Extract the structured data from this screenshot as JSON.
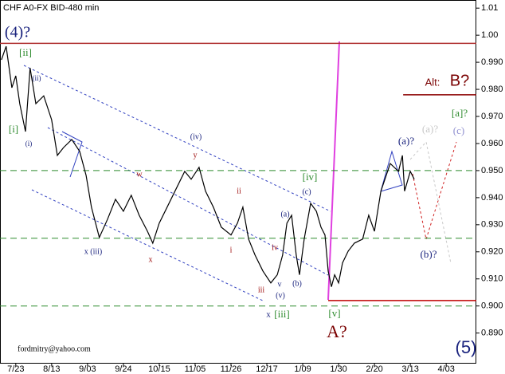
{
  "chart_data": {
    "type": "line",
    "title": "CHF A0-FX BID-480 min",
    "xlim": [
      -0.44,
      12.84
    ],
    "xticks": [
      {
        "value": 0,
        "label": "7/23"
      },
      {
        "value": 1,
        "label": "8/13"
      },
      {
        "value": 2,
        "label": "9/03"
      },
      {
        "value": 3,
        "label": "9/24"
      },
      {
        "value": 4,
        "label": "10/15"
      },
      {
        "value": 5,
        "label": "11/05"
      },
      {
        "value": 6,
        "label": "11/26"
      },
      {
        "value": 7,
        "label": "12/17"
      },
      {
        "value": 8,
        "label": "1/09"
      },
      {
        "value": 9,
        "label": "1/30"
      },
      {
        "value": 10,
        "label": "2/20"
      },
      {
        "value": 11,
        "label": "3/13"
      },
      {
        "value": 12,
        "label": "4/03"
      }
    ],
    "ylim": [
      0.879,
      1.013
    ],
    "yticks": [
      1.01,
      {
        "value": 1.0,
        "label": "1.00"
      },
      {
        "value": 0.99,
        "label": "0.990"
      },
      {
        "value": 0.98,
        "label": "0.980"
      },
      {
        "value": 0.97,
        "label": "0.970"
      },
      {
        "value": 0.96,
        "label": "0.960"
      },
      {
        "value": 0.95,
        "label": "0.950"
      },
      {
        "value": 0.94,
        "label": "0.940"
      },
      {
        "value": 0.93,
        "label": "0.930"
      },
      {
        "value": 0.92,
        "label": "0.920"
      },
      {
        "value": 0.91,
        "label": "0.910"
      },
      {
        "value": 0.9,
        "label": "0.900"
      },
      {
        "value": 0.89,
        "label": "0.890"
      }
    ],
    "series": [
      {
        "color": "#000000",
        "x": [
          -0.4,
          -0.27,
          -0.11,
          0,
          0.11,
          0.27,
          0.4,
          0.56,
          0.78,
          1.0,
          1.16,
          1.33,
          1.56,
          1.78,
          1.96,
          2.11,
          2.33,
          2.56,
          2.78,
          3.0,
          3.22,
          3.44,
          3.67,
          3.82,
          4.0,
          4.22,
          4.44,
          4.71,
          4.89,
          5.11,
          5.29,
          5.51,
          5.73,
          6.0,
          6.18,
          6.33,
          6.49,
          6.67,
          6.89,
          7.11,
          7.29,
          7.44,
          7.56,
          7.69,
          7.82,
          7.91,
          8.04,
          8.22,
          8.38,
          8.51,
          8.62,
          8.71,
          8.8,
          8.89,
          9.0,
          9.11,
          9.27,
          9.44,
          9.67,
          9.84,
          10.0,
          10.18,
          10.44,
          10.67,
          10.78,
          10.84,
          11.0,
          11.11
        ],
        "values": [
          0.9909,
          0.9959,
          0.9806,
          0.985,
          0.9747,
          0.9644,
          0.9879,
          0.9747,
          0.9776,
          0.9688,
          0.9556,
          0.9585,
          0.9615,
          0.9571,
          0.9482,
          0.9365,
          0.9253,
          0.9321,
          0.9394,
          0.935,
          0.9409,
          0.9335,
          0.9276,
          0.9232,
          0.9306,
          0.9365,
          0.9424,
          0.9497,
          0.9468,
          0.9512,
          0.9424,
          0.9365,
          0.9291,
          0.9262,
          0.9306,
          0.9365,
          0.9247,
          0.9188,
          0.9129,
          0.9085,
          0.9115,
          0.9188,
          0.9306,
          0.9335,
          0.9188,
          0.9115,
          0.9247,
          0.9379,
          0.935,
          0.9291,
          0.9262,
          0.9129,
          0.9071,
          0.9115,
          0.9085,
          0.9159,
          0.9203,
          0.9232,
          0.9247,
          0.9335,
          0.9276,
          0.9424,
          0.9526,
          0.9497,
          0.9556,
          0.9424,
          0.9497,
          0.9468
        ]
      }
    ],
    "levels": [
      {
        "value": 0.997,
        "color": "#b03030",
        "dash": false,
        "from": -0.44
      },
      {
        "value": 0.95,
        "color": "#2e8b2e",
        "dash": true,
        "from": -0.44
      },
      {
        "value": 0.925,
        "color": "#2e8b2e",
        "dash": true,
        "from": -0.44
      },
      {
        "value": 0.9,
        "color": "#2e8b2e",
        "dash": true,
        "from": -0.44
      },
      {
        "value": 0.902,
        "color": "#c00000",
        "dash": false,
        "from": 8.71
      },
      {
        "value": 0.978,
        "color": "#8b0000",
        "dash": false,
        "from": 10.8
      }
    ],
    "annotations": [
      "(4)?",
      "[ii]",
      "(ii)",
      "[i]",
      "(i)",
      "x (iii)",
      "w",
      "x",
      "(iv)",
      "y",
      "ii",
      "i",
      "iii",
      "iv",
      "v",
      "(v)",
      "x",
      "[iii]",
      "(a)",
      "(b)",
      "(c)",
      "[iv]",
      "[v]",
      "A?",
      "(a)?",
      "(a)?",
      "(c)",
      "[a]?",
      "(b)?",
      "Alt:",
      "B?",
      "(5)",
      "fordmitry@yahoo.com"
    ]
  }
}
